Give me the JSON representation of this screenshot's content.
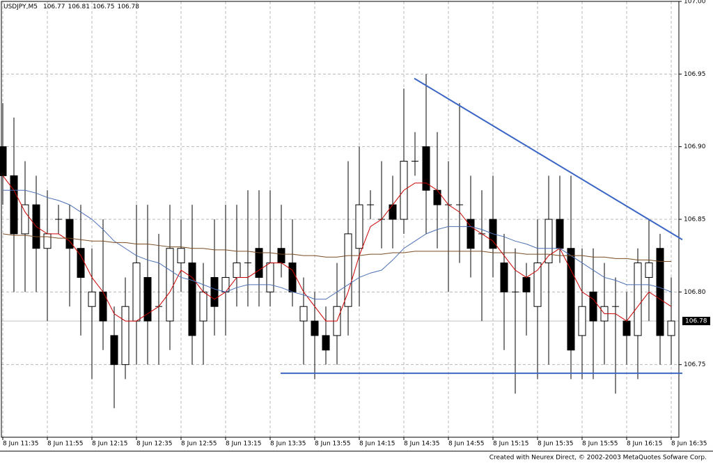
{
  "chart_data": {
    "type": "candlestick",
    "title": "USDJPY,M5",
    "header_values": [
      106.77,
      106.81,
      106.75,
      106.78
    ],
    "categories": [
      "8 Jun 11:35",
      null,
      null,
      null,
      "8 Jun 11:55",
      null,
      null,
      null,
      "8 Jun 12:15",
      null,
      null,
      null,
      "8 Jun 12:35",
      null,
      null,
      null,
      "8 Jun 12:55",
      null,
      null,
      null,
      "8 Jun 13:15",
      null,
      null,
      null,
      "8 Jun 13:35",
      null,
      null,
      null,
      "8 Jun 13:55",
      null,
      null,
      null,
      "8 Jun 14:15",
      null,
      null,
      null,
      "8 Jun 14:35",
      null,
      null,
      null,
      "8 Jun 14:55",
      null,
      null,
      null,
      "8 Jun 15:15",
      null,
      null,
      null,
      "8 Jun 15:35",
      null,
      null,
      null,
      "8 Jun 15:55",
      null,
      null,
      null,
      "8 Jun 16:15",
      null,
      null,
      null,
      "8 Jun 16:35"
    ],
    "open": [
      106.9,
      106.88,
      106.84,
      106.86,
      106.83,
      106.85,
      106.85,
      106.83,
      106.79,
      106.8,
      106.77,
      106.75,
      106.78,
      106.81,
      106.79,
      106.78,
      106.82,
      106.82,
      106.78,
      106.81,
      106.8,
      106.81,
      106.82,
      106.83,
      106.8,
      106.83,
      106.82,
      106.78,
      106.78,
      106.77,
      106.77,
      106.79,
      106.83,
      106.86,
      106.85,
      106.86,
      106.85,
      106.89,
      106.9,
      106.87,
      106.86,
      106.86,
      106.85,
      106.84,
      106.85,
      106.82,
      106.8,
      106.81,
      106.79,
      106.82,
      106.85,
      106.83,
      106.77,
      106.8,
      106.78,
      106.79,
      106.78,
      106.77,
      106.81,
      106.83,
      106.77
    ],
    "high": [
      106.93,
      106.92,
      106.89,
      106.88,
      106.87,
      106.86,
      106.86,
      106.86,
      106.83,
      106.85,
      106.79,
      106.81,
      106.86,
      106.86,
      106.84,
      106.86,
      106.85,
      106.86,
      106.82,
      106.85,
      106.86,
      106.86,
      106.87,
      106.87,
      106.87,
      106.86,
      106.85,
      106.81,
      106.8,
      106.79,
      106.82,
      106.89,
      106.9,
      106.87,
      106.89,
      106.88,
      106.94,
      106.91,
      106.95,
      106.91,
      106.89,
      106.93,
      106.88,
      106.87,
      106.88,
      106.84,
      106.83,
      106.82,
      106.85,
      106.88,
      106.88,
      106.88,
      106.83,
      106.83,
      106.82,
      106.81,
      106.8,
      106.83,
      106.85,
      106.84,
      106.81
    ],
    "low": [
      106.86,
      106.8,
      106.8,
      106.8,
      106.78,
      106.84,
      106.79,
      106.77,
      106.74,
      106.76,
      106.72,
      106.74,
      106.75,
      106.75,
      106.75,
      106.76,
      106.8,
      106.75,
      106.75,
      106.77,
      106.77,
      106.79,
      106.79,
      106.79,
      106.79,
      106.81,
      106.79,
      106.75,
      106.74,
      106.75,
      106.75,
      106.77,
      106.79,
      106.85,
      106.83,
      106.83,
      106.84,
      106.88,
      106.84,
      106.83,
      106.8,
      106.82,
      106.81,
      106.78,
      106.81,
      106.76,
      106.73,
      106.77,
      106.74,
      106.75,
      106.82,
      106.74,
      106.74,
      106.74,
      106.75,
      106.73,
      106.75,
      106.74,
      106.78,
      106.75,
      106.75
    ],
    "close": [
      106.88,
      106.84,
      106.86,
      106.83,
      106.84,
      106.85,
      106.83,
      106.81,
      106.8,
      106.78,
      106.75,
      106.79,
      106.82,
      106.78,
      106.79,
      106.83,
      106.83,
      106.77,
      106.8,
      106.79,
      106.81,
      106.82,
      106.82,
      106.81,
      106.82,
      106.82,
      106.8,
      106.79,
      106.77,
      106.76,
      106.79,
      106.84,
      106.86,
      106.86,
      106.85,
      106.85,
      106.89,
      106.89,
      106.87,
      106.86,
      106.86,
      106.86,
      106.83,
      106.84,
      106.83,
      106.8,
      106.8,
      106.8,
      106.82,
      106.85,
      106.83,
      106.76,
      106.79,
      106.78,
      106.79,
      106.79,
      106.77,
      106.82,
      106.82,
      106.77,
      106.78
    ],
    "indicators": [
      {
        "color": "#cc0000",
        "values": [
          106.88,
          106.87,
          106.855,
          106.845,
          106.84,
          106.84,
          106.835,
          106.825,
          106.81,
          106.8,
          106.785,
          106.78,
          106.78,
          106.785,
          106.79,
          106.8,
          106.815,
          106.81,
          106.8,
          106.795,
          106.8,
          106.81,
          106.81,
          106.815,
          106.82,
          106.82,
          106.815,
          106.8,
          106.79,
          106.78,
          106.78,
          106.8,
          106.825,
          106.845,
          106.85,
          106.86,
          106.87,
          106.875,
          106.875,
          106.87,
          106.86,
          106.855,
          106.845,
          106.84,
          106.835,
          106.825,
          106.815,
          106.81,
          106.815,
          106.825,
          106.83,
          106.815,
          106.8,
          106.795,
          106.785,
          106.785,
          106.78,
          106.79,
          106.8,
          106.795,
          106.79
        ]
      },
      {
        "color": "#4a6fb5",
        "values": [
          106.87,
          106.87,
          106.87,
          106.868,
          106.865,
          106.863,
          106.86,
          106.855,
          106.85,
          106.843,
          106.835,
          106.83,
          106.825,
          106.822,
          106.82,
          106.815,
          106.81,
          106.808,
          106.805,
          106.802,
          106.8,
          106.803,
          106.805,
          106.805,
          106.805,
          106.803,
          106.8,
          106.798,
          106.795,
          106.795,
          106.8,
          106.805,
          106.81,
          106.813,
          106.815,
          106.822,
          106.83,
          106.835,
          106.84,
          106.843,
          106.845,
          106.845,
          106.845,
          106.843,
          106.84,
          106.838,
          106.835,
          106.833,
          106.83,
          106.83,
          106.83,
          106.825,
          106.82,
          106.815,
          106.81,
          106.808,
          106.805,
          106.805,
          106.805,
          106.803,
          106.8
        ]
      },
      {
        "color": "#7a4a22",
        "values": [
          106.84,
          106.839,
          106.839,
          106.838,
          106.838,
          106.837,
          106.837,
          106.836,
          106.835,
          106.835,
          106.834,
          106.834,
          106.833,
          106.833,
          106.832,
          106.831,
          106.831,
          106.83,
          106.83,
          106.829,
          106.829,
          106.828,
          106.828,
          106.827,
          106.827,
          106.826,
          106.826,
          106.825,
          106.825,
          106.824,
          106.824,
          106.825,
          106.825,
          106.826,
          106.826,
          106.827,
          106.827,
          106.828,
          106.828,
          106.828,
          106.828,
          106.828,
          106.828,
          106.828,
          106.827,
          106.827,
          106.827,
          106.826,
          106.826,
          106.826,
          106.825,
          106.825,
          106.825,
          106.824,
          106.824,
          106.823,
          106.823,
          106.822,
          106.822,
          106.821,
          106.821
        ]
      }
    ],
    "trendlines": [
      {
        "color": "#3b66c4",
        "y": [
          106.947,
          106.836
        ]
      },
      {
        "color": "#3b66c4",
        "y": [
          106.744,
          106.744
        ]
      }
    ],
    "current_price": 106.78,
    "ylim": [
      106.7,
      107.0
    ],
    "yticks": [
      {
        "value": 106.75,
        "label": "106.75"
      },
      {
        "value": 106.8,
        "label": "106.80"
      },
      {
        "value": 106.85,
        "label": "106.85"
      },
      {
        "value": 106.9,
        "label": "106.90"
      },
      {
        "value": 106.95,
        "label": "106.95"
      },
      {
        "value": 107,
        "label": "107.00"
      }
    ],
    "grid": true
  },
  "footer": "Created with Neurex Direct, © 2002-2003 MetaQuotes Sofware Corp."
}
